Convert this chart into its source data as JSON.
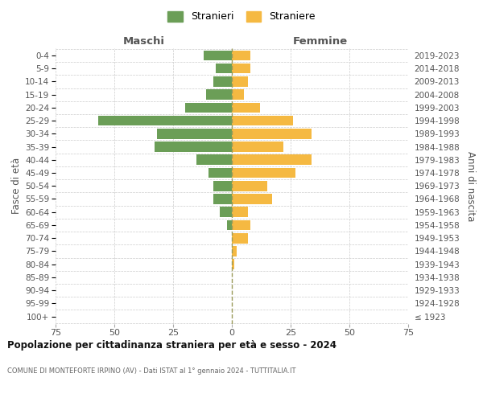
{
  "age_groups": [
    "100+",
    "95-99",
    "90-94",
    "85-89",
    "80-84",
    "75-79",
    "70-74",
    "65-69",
    "60-64",
    "55-59",
    "50-54",
    "45-49",
    "40-44",
    "35-39",
    "30-34",
    "25-29",
    "20-24",
    "15-19",
    "10-14",
    "5-9",
    "0-4"
  ],
  "birth_years": [
    "≤ 1923",
    "1924-1928",
    "1929-1933",
    "1934-1938",
    "1939-1943",
    "1944-1948",
    "1949-1953",
    "1954-1958",
    "1959-1963",
    "1964-1968",
    "1969-1973",
    "1974-1978",
    "1979-1983",
    "1984-1988",
    "1989-1993",
    "1994-1998",
    "1999-2003",
    "2004-2008",
    "2009-2013",
    "2014-2018",
    "2019-2023"
  ],
  "males": [
    0,
    0,
    0,
    0,
    0,
    0,
    0,
    2,
    5,
    8,
    8,
    10,
    15,
    33,
    32,
    57,
    20,
    11,
    8,
    7,
    12
  ],
  "females": [
    0,
    0,
    0,
    0,
    1,
    2,
    7,
    8,
    7,
    17,
    15,
    27,
    34,
    22,
    34,
    26,
    12,
    5,
    7,
    8,
    8
  ],
  "male_color": "#6b9e57",
  "female_color": "#f5b942",
  "dashed_line_color": "#9a9a5a",
  "grid_color": "#cccccc",
  "title": "Popolazione per cittadinanza straniera per età e sesso - 2024",
  "subtitle": "COMUNE DI MONTEFORTE IRPINO (AV) - Dati ISTAT al 1° gennaio 2024 - TUTTITALIA.IT",
  "header_left": "Maschi",
  "header_right": "Femmine",
  "ylabel_left": "Fasce di età",
  "ylabel_right": "Anni di nascita",
  "legend_m": "Stranieri",
  "legend_f": "Straniere",
  "xlim": 75,
  "bar_height": 0.78
}
